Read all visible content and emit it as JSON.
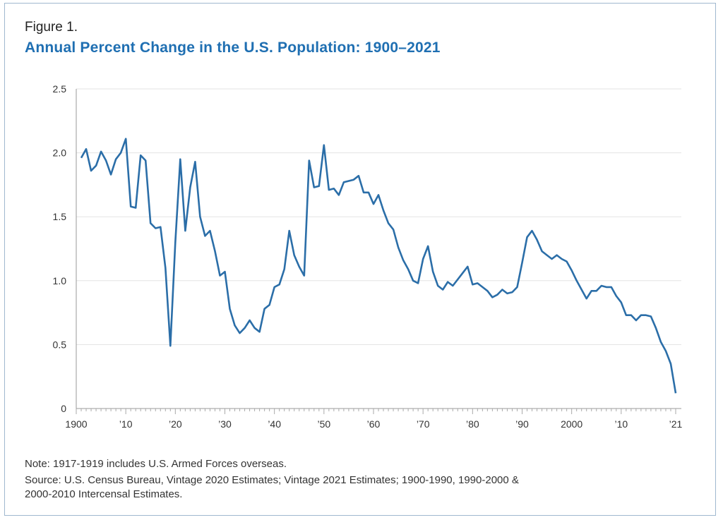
{
  "figure_label": "Figure 1.",
  "chart_data": {
    "type": "line",
    "title": "Annual Percent Change in the U.S. Population: 1900–2021",
    "xlabel": "",
    "ylabel": "",
    "xlim": [
      1900,
      2021
    ],
    "ylim": [
      0,
      2.5
    ],
    "grid": true,
    "line_color": "#2b6ea8",
    "y_ticks": [
      {
        "v": 0,
        "label": "0"
      },
      {
        "v": 0.5,
        "label": "0.5"
      },
      {
        "v": 1,
        "label": "1.0"
      },
      {
        "v": 1.5,
        "label": "1.5"
      },
      {
        "v": 2,
        "label": "2.0"
      },
      {
        "v": 2.5,
        "label": "2.5"
      }
    ],
    "x_ticks": [
      {
        "v": 1900,
        "label": "1900"
      },
      {
        "v": 1910,
        "label": "’10"
      },
      {
        "v": 1920,
        "label": "’20"
      },
      {
        "v": 1930,
        "label": "’30"
      },
      {
        "v": 1940,
        "label": "’40"
      },
      {
        "v": 1950,
        "label": "’50"
      },
      {
        "v": 1960,
        "label": "’60"
      },
      {
        "v": 1970,
        "label": "’70"
      },
      {
        "v": 1980,
        "label": "’80"
      },
      {
        "v": 1990,
        "label": "’90"
      },
      {
        "v": 2000,
        "label": "2000"
      },
      {
        "v": 2010,
        "label": "’10"
      },
      {
        "v": 2021,
        "label": "’21"
      }
    ],
    "x_start": 1901,
    "values": [
      1.96,
      2.03,
      1.86,
      1.9,
      2.01,
      1.94,
      1.83,
      1.95,
      2.0,
      2.11,
      1.58,
      1.57,
      1.98,
      1.94,
      1.45,
      1.41,
      1.42,
      1.1,
      0.49,
      1.3,
      1.95,
      1.39,
      1.73,
      1.93,
      1.5,
      1.35,
      1.39,
      1.23,
      1.04,
      1.07,
      0.78,
      0.65,
      0.59,
      0.63,
      0.69,
      0.63,
      0.6,
      0.78,
      0.81,
      0.95,
      0.97,
      1.09,
      1.39,
      1.2,
      1.11,
      1.04,
      1.94,
      1.73,
      1.74,
      2.06,
      1.71,
      1.72,
      1.67,
      1.77,
      1.78,
      1.79,
      1.82,
      1.69,
      1.69,
      1.6,
      1.67,
      1.55,
      1.45,
      1.4,
      1.26,
      1.16,
      1.09,
      1.0,
      0.98,
      1.17,
      1.27,
      1.07,
      0.96,
      0.93,
      0.99,
      0.96,
      1.01,
      1.06,
      1.11,
      0.97,
      0.98,
      0.95,
      0.92,
      0.87,
      0.89,
      0.93,
      0.9,
      0.91,
      0.95,
      1.14,
      1.34,
      1.39,
      1.32,
      1.23,
      1.2,
      1.17,
      1.2,
      1.17,
      1.15,
      1.08,
      1.0,
      0.93,
      0.86,
      0.92,
      0.92,
      0.96,
      0.95,
      0.95,
      0.88,
      0.83,
      0.73,
      0.73,
      0.69,
      0.73,
      0.73,
      0.72,
      0.63,
      0.52,
      0.45,
      0.35,
      0.12
    ]
  },
  "notes": {
    "note": "Note: 1917-1919 includes U.S. Armed Forces overseas.",
    "source_line1": "Source: U.S. Census Bureau, Vintage 2020 Estimates; Vintage 2021 Estimates; 1900-1990, 1990-2000 &",
    "source_line2": "2000-2010 Intercensal Estimates."
  }
}
